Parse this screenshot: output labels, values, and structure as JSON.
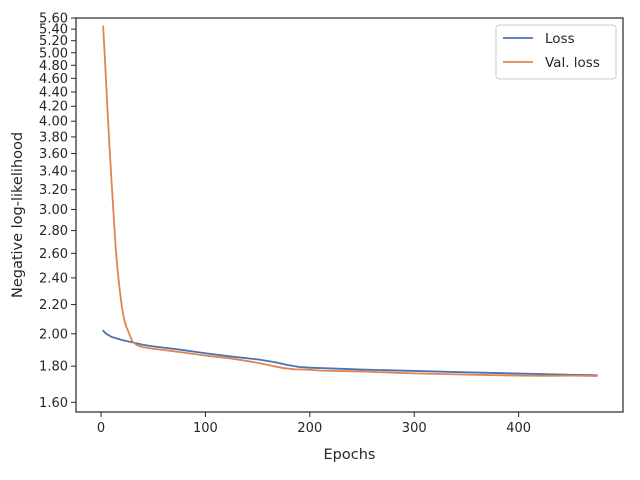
{
  "chart_data": {
    "type": "line",
    "title": "",
    "xlabel": "Epochs",
    "ylabel": "Negative log-likelihood",
    "xlim": [
      -24,
      500
    ],
    "ylim": [
      1.55,
      5.6
    ],
    "yscale": "log",
    "grid": false,
    "legend_placement": "top-right",
    "x_ticks": [
      0,
      100,
      200,
      300,
      400
    ],
    "y_ticks": [
      1.6,
      1.8,
      2.0,
      2.2,
      2.4,
      2.6,
      2.8,
      3.0,
      3.2,
      3.4,
      3.6,
      3.8,
      4.0,
      4.2,
      4.4,
      4.6,
      4.8,
      5.0,
      5.2,
      5.4,
      5.6
    ],
    "series": [
      {
        "name": "Loss",
        "color": "#4c72b0",
        "points": [
          [
            2,
            2.02
          ],
          [
            5,
            2.0
          ],
          [
            10,
            1.98
          ],
          [
            20,
            1.96
          ],
          [
            30,
            1.945
          ],
          [
            40,
            1.93
          ],
          [
            50,
            1.92
          ],
          [
            75,
            1.9
          ],
          [
            100,
            1.877
          ],
          [
            125,
            1.857
          ],
          [
            150,
            1.84
          ],
          [
            165,
            1.825
          ],
          [
            180,
            1.805
          ],
          [
            190,
            1.795
          ],
          [
            200,
            1.791
          ],
          [
            250,
            1.78
          ],
          [
            300,
            1.772
          ],
          [
            350,
            1.764
          ],
          [
            400,
            1.757
          ],
          [
            450,
            1.75
          ],
          [
            475,
            1.747
          ]
        ]
      },
      {
        "name": "Val. loss",
        "color": "#dd8452",
        "points": [
          [
            2,
            5.45
          ],
          [
            4,
            4.8
          ],
          [
            6,
            4.2
          ],
          [
            8,
            3.7
          ],
          [
            10,
            3.3
          ],
          [
            12,
            2.95
          ],
          [
            14,
            2.65
          ],
          [
            16,
            2.45
          ],
          [
            18,
            2.3
          ],
          [
            20,
            2.18
          ],
          [
            22,
            2.1
          ],
          [
            24,
            2.05
          ],
          [
            27,
            2.0
          ],
          [
            30,
            1.95
          ],
          [
            35,
            1.925
          ],
          [
            40,
            1.915
          ],
          [
            50,
            1.905
          ],
          [
            75,
            1.885
          ],
          [
            100,
            1.863
          ],
          [
            125,
            1.845
          ],
          [
            150,
            1.82
          ],
          [
            165,
            1.8
          ],
          [
            175,
            1.788
          ],
          [
            185,
            1.782
          ],
          [
            200,
            1.779
          ],
          [
            210,
            1.774
          ],
          [
            250,
            1.769
          ],
          [
            280,
            1.762
          ],
          [
            300,
            1.758
          ],
          [
            350,
            1.751
          ],
          [
            400,
            1.745
          ],
          [
            425,
            1.744
          ],
          [
            450,
            1.745
          ],
          [
            475,
            1.743
          ]
        ]
      }
    ]
  }
}
